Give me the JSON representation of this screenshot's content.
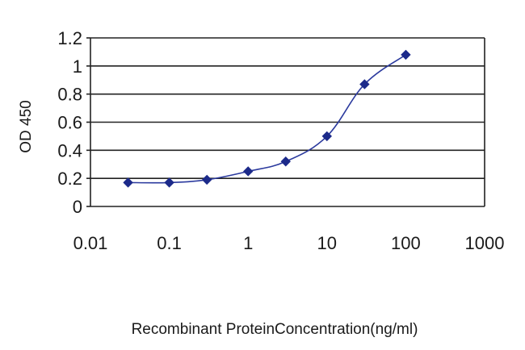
{
  "chart_data": {
    "type": "line",
    "x": [
      0.03,
      0.1,
      0.3,
      1,
      3,
      10,
      30,
      100
    ],
    "series": [
      {
        "values": [
          0.17,
          0.17,
          0.19,
          0.25,
          0.32,
          0.5,
          0.87,
          1.08
        ]
      }
    ],
    "xlabel": "Recombinant ProteinConcentration(ng/ml)",
    "ylabel": "OD 450",
    "xscale": "log",
    "xlim": [
      0.01,
      1000
    ],
    "ylim": [
      0,
      1.2
    ],
    "x_ticks": [
      "0.01",
      "0.1",
      "1",
      "10",
      "100",
      "1000"
    ],
    "y_ticks": [
      "0",
      "0.2",
      "0.4",
      "0.6",
      "0.8",
      "1",
      "1.2"
    ],
    "grid": "horizontal",
    "legend": "none",
    "colors": {
      "series": "#2b3a9e",
      "marker": "#1c2a8a",
      "grid": "#222222",
      "axis": "#222222"
    }
  }
}
